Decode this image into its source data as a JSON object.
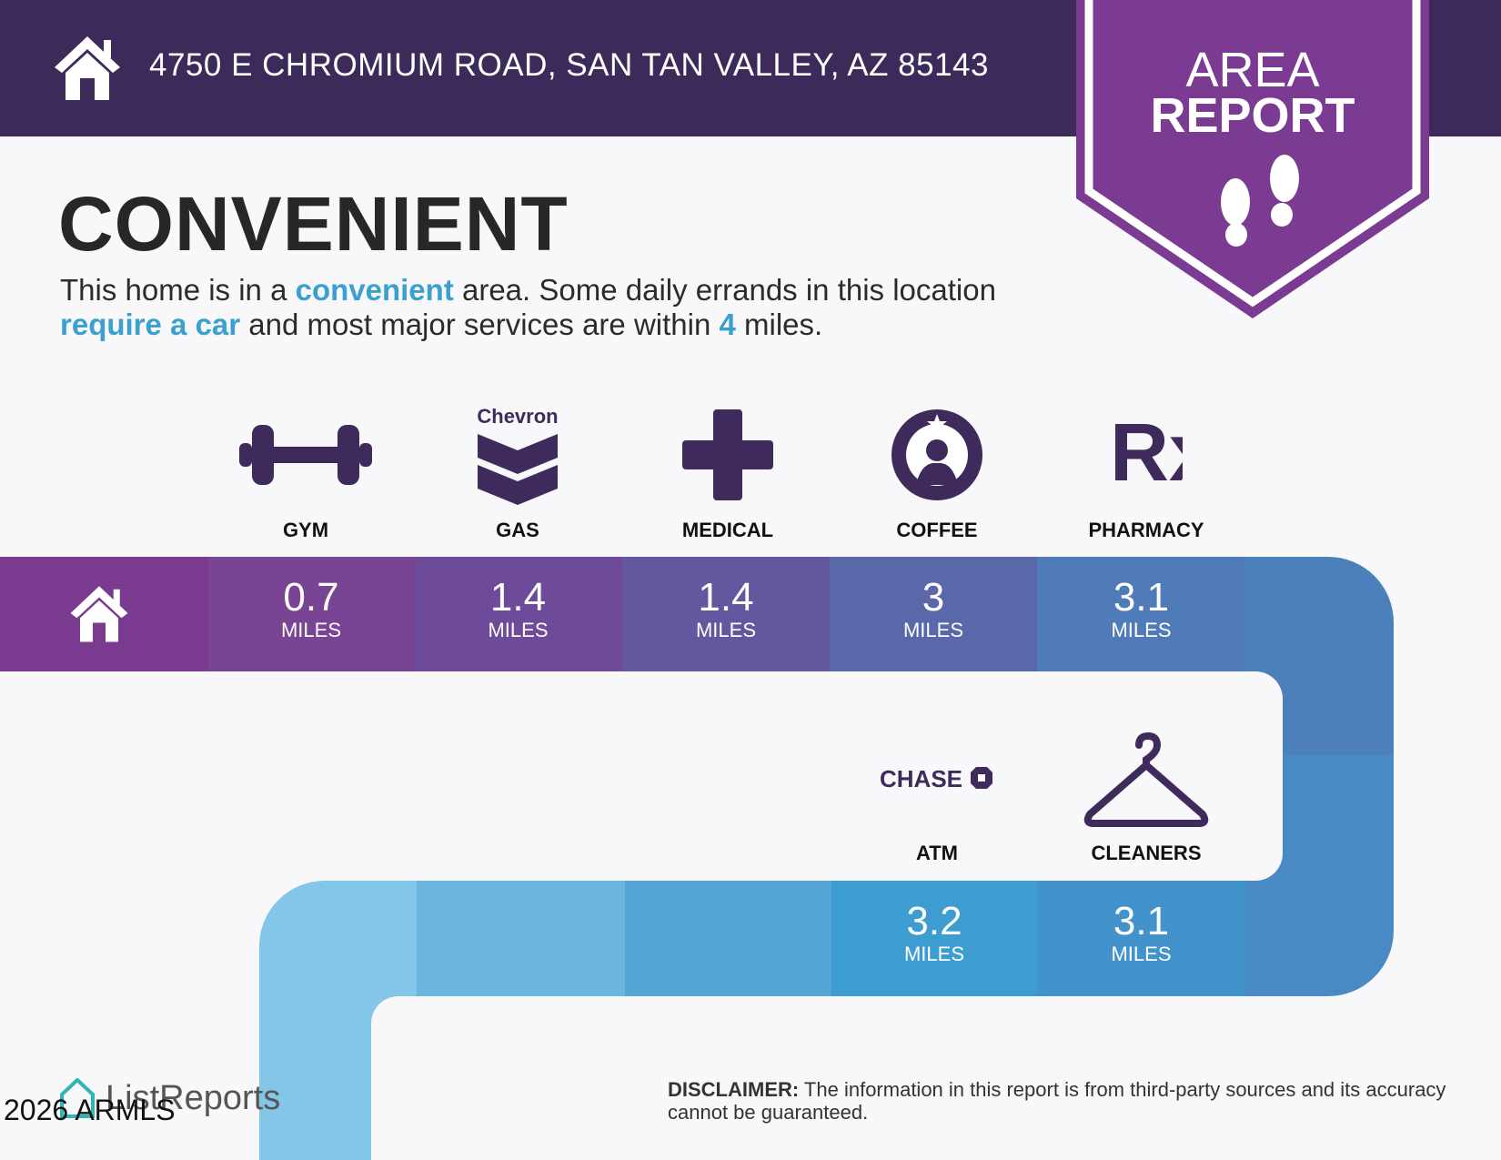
{
  "header": {
    "address": "4750 E CHROMIUM ROAD, SAN TAN VALLEY, AZ 85143",
    "icon": "house-icon"
  },
  "badge": {
    "line1": "AREA",
    "line2": "REPORT",
    "icon": "footprints-icon",
    "color": "#7b3b92"
  },
  "main": {
    "title": "CONVENIENT",
    "desc": {
      "p1": "This home is in a ",
      "h1": "convenient",
      "p2": " area. Some daily errands in this location ",
      "h2": "require a car",
      "p3": " and most major services are within ",
      "h3": "4",
      "p4": " miles."
    }
  },
  "amenities": [
    {
      "label": "GYM",
      "value": "0.7",
      "unit": "MILES",
      "icon": "dumbbell-icon"
    },
    {
      "label": "GAS",
      "value": "1.4",
      "unit": "MILES",
      "icon": "chevron-logo-icon",
      "logo_text": "Chevron"
    },
    {
      "label": "MEDICAL",
      "value": "1.4",
      "unit": "MILES",
      "icon": "medical-cross-icon"
    },
    {
      "label": "COFFEE",
      "value": "3",
      "unit": "MILES",
      "icon": "starbucks-logo-icon"
    },
    {
      "label": "PHARMACY",
      "value": "3.1",
      "unit": "MILES",
      "icon": "rx-icon",
      "logo_text": "Rx"
    },
    {
      "label": "ATM",
      "value": "3.2",
      "unit": "MILES",
      "icon": "chase-logo-icon",
      "logo_text": "CHASE"
    },
    {
      "label": "CLEANERS",
      "value": "3.1",
      "unit": "MILES",
      "icon": "hanger-icon"
    }
  ],
  "footer": {
    "brand": "ListReports",
    "copyright": "2026 ARMLS",
    "disclaimer_label": "DISCLAIMER:",
    "disclaimer": " The information in this report is from third-party sources and its accuracy cannot be guaranteed."
  },
  "colors": {
    "header": "#3c2a5a",
    "accent": "#3aa0cf",
    "icon": "#3f2a5c"
  }
}
